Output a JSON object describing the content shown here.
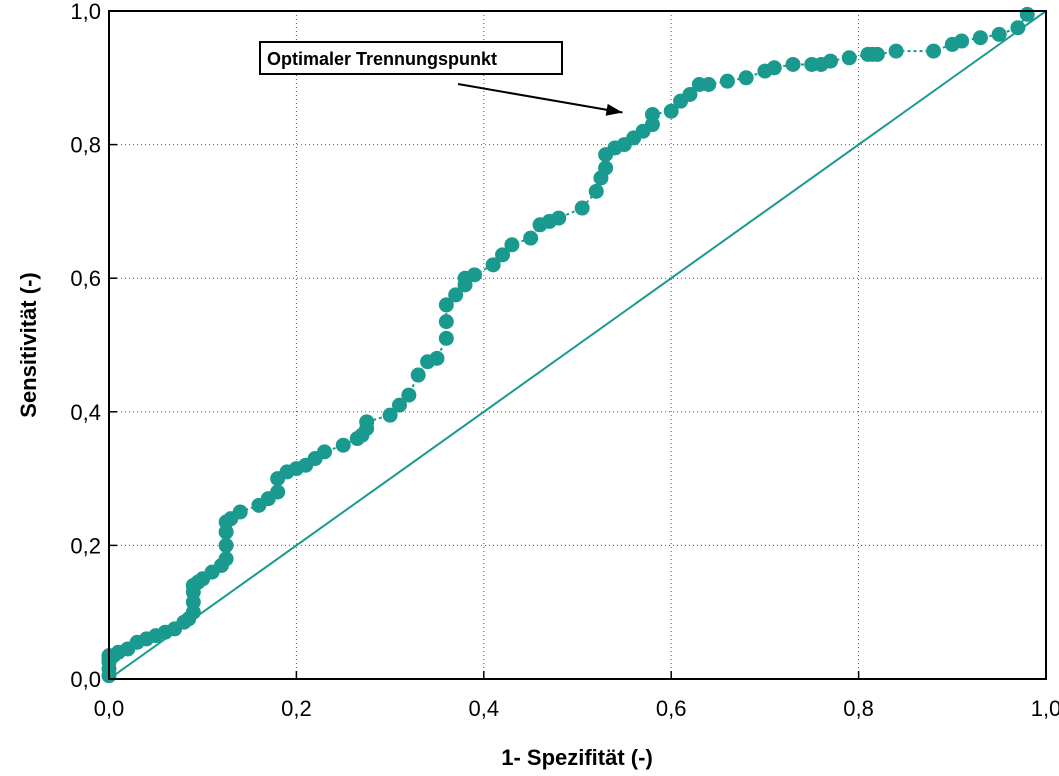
{
  "chart_data": {
    "type": "scatter",
    "title": "",
    "xlabel": "1- Spezifität (-)",
    "ylabel": "Sensitivität (-)",
    "xlim": [
      0,
      1
    ],
    "ylim": [
      0,
      1
    ],
    "xticks": [
      "0,0",
      "0,2",
      "0,4",
      "0,6",
      "0,8",
      "1,0"
    ],
    "yticks": [
      "0,0",
      "0,2",
      "0,4",
      "0,6",
      "0,8",
      "1,0"
    ],
    "grid": true,
    "legend": "none",
    "annotation": {
      "text": "Optimaler Trennungspunkt",
      "points_to": [
        0.58,
        0.845
      ]
    },
    "colors": {
      "series": "#1a9a8f",
      "text": "#000000"
    },
    "series": [
      {
        "style": "markers-dashed",
        "x": [
          0.0,
          0.0,
          0.0,
          0.0,
          0.0,
          0.005,
          0.01,
          0.02,
          0.03,
          0.04,
          0.05,
          0.06,
          0.07,
          0.08,
          0.085,
          0.09,
          0.09,
          0.09,
          0.09,
          0.095,
          0.1,
          0.11,
          0.12,
          0.125,
          0.125,
          0.125,
          0.125,
          0.13,
          0.14,
          0.16,
          0.17,
          0.18,
          0.18,
          0.19,
          0.2,
          0.21,
          0.22,
          0.23,
          0.25,
          0.265,
          0.27,
          0.275,
          0.275,
          0.3,
          0.31,
          0.32,
          0.33,
          0.34,
          0.35,
          0.36,
          0.36,
          0.36,
          0.37,
          0.38,
          0.38,
          0.39,
          0.41,
          0.42,
          0.43,
          0.45,
          0.46,
          0.47,
          0.48,
          0.505,
          0.52,
          0.525,
          0.53,
          0.53,
          0.54,
          0.55,
          0.56,
          0.57,
          0.58,
          0.58,
          0.6,
          0.61,
          0.62,
          0.63,
          0.64,
          0.66,
          0.68,
          0.7,
          0.71,
          0.73,
          0.75,
          0.76,
          0.77,
          0.79,
          0.81,
          0.815,
          0.82,
          0.84,
          0.88,
          0.9,
          0.91,
          0.93,
          0.95,
          0.97,
          0.98
        ],
        "y": [
          0.005,
          0.015,
          0.025,
          0.03,
          0.035,
          0.035,
          0.04,
          0.045,
          0.055,
          0.06,
          0.065,
          0.07,
          0.075,
          0.085,
          0.09,
          0.1,
          0.115,
          0.13,
          0.14,
          0.145,
          0.15,
          0.16,
          0.17,
          0.18,
          0.2,
          0.22,
          0.235,
          0.24,
          0.25,
          0.26,
          0.27,
          0.28,
          0.3,
          0.31,
          0.315,
          0.32,
          0.33,
          0.34,
          0.35,
          0.36,
          0.365,
          0.375,
          0.385,
          0.395,
          0.41,
          0.425,
          0.455,
          0.475,
          0.48,
          0.51,
          0.535,
          0.56,
          0.575,
          0.59,
          0.6,
          0.605,
          0.62,
          0.635,
          0.65,
          0.66,
          0.68,
          0.685,
          0.69,
          0.705,
          0.73,
          0.75,
          0.765,
          0.785,
          0.795,
          0.8,
          0.81,
          0.82,
          0.83,
          0.845,
          0.85,
          0.865,
          0.875,
          0.89,
          0.89,
          0.895,
          0.9,
          0.91,
          0.915,
          0.92,
          0.92,
          0.92,
          0.925,
          0.93,
          0.935,
          0.935,
          0.935,
          0.94,
          0.94,
          0.95,
          0.955,
          0.96,
          0.965,
          0.975,
          0.995
        ]
      },
      {
        "style": "line",
        "x": [
          0,
          1
        ],
        "y": [
          0,
          1
        ]
      }
    ]
  }
}
